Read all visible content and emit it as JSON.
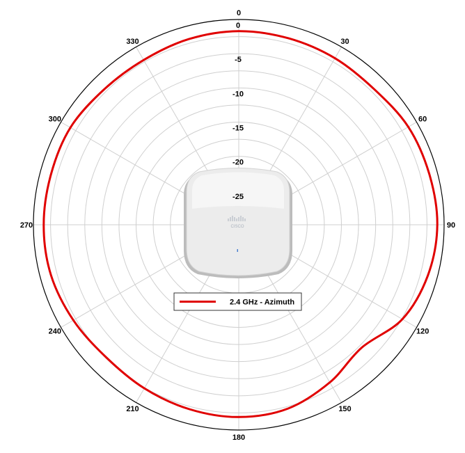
{
  "chart_data": {
    "type": "line",
    "subtype": "polar",
    "title": "",
    "angle_labels": [
      "0",
      "30",
      "60",
      "90",
      "120",
      "150",
      "180",
      "210",
      "240",
      "270",
      "300",
      "330"
    ],
    "radial_labels": [
      "0",
      "-5",
      "-10",
      "-15",
      "-20",
      "-25"
    ],
    "radial_range": [
      -30,
      0
    ],
    "angle_units": "degrees",
    "grid": true,
    "legend_position": "center",
    "series": [
      {
        "name": "2.4 GHz - Azimuth",
        "color": "#e00000",
        "theta": [
          0,
          15,
          30,
          45,
          60,
          75,
          90,
          105,
          120,
          135,
          150,
          165,
          180,
          195,
          210,
          225,
          240,
          255,
          270,
          285,
          300,
          315,
          330,
          345
        ],
        "r": [
          -1.7,
          -1.8,
          -1.9,
          -2.0,
          -1.4,
          -1.2,
          -1.0,
          -1.4,
          -2.4,
          -4.6,
          -3.4,
          -2.2,
          -1.9,
          -2.1,
          -2.4,
          -2.6,
          -2.1,
          -1.6,
          -1.5,
          -1.6,
          -1.6,
          -2.1,
          -2.2,
          -1.9
        ]
      }
    ]
  },
  "device_image": {
    "icon": "cisco-access-point-icon",
    "brand_text": "CISCO",
    "device_color": "#e9e9e9"
  }
}
